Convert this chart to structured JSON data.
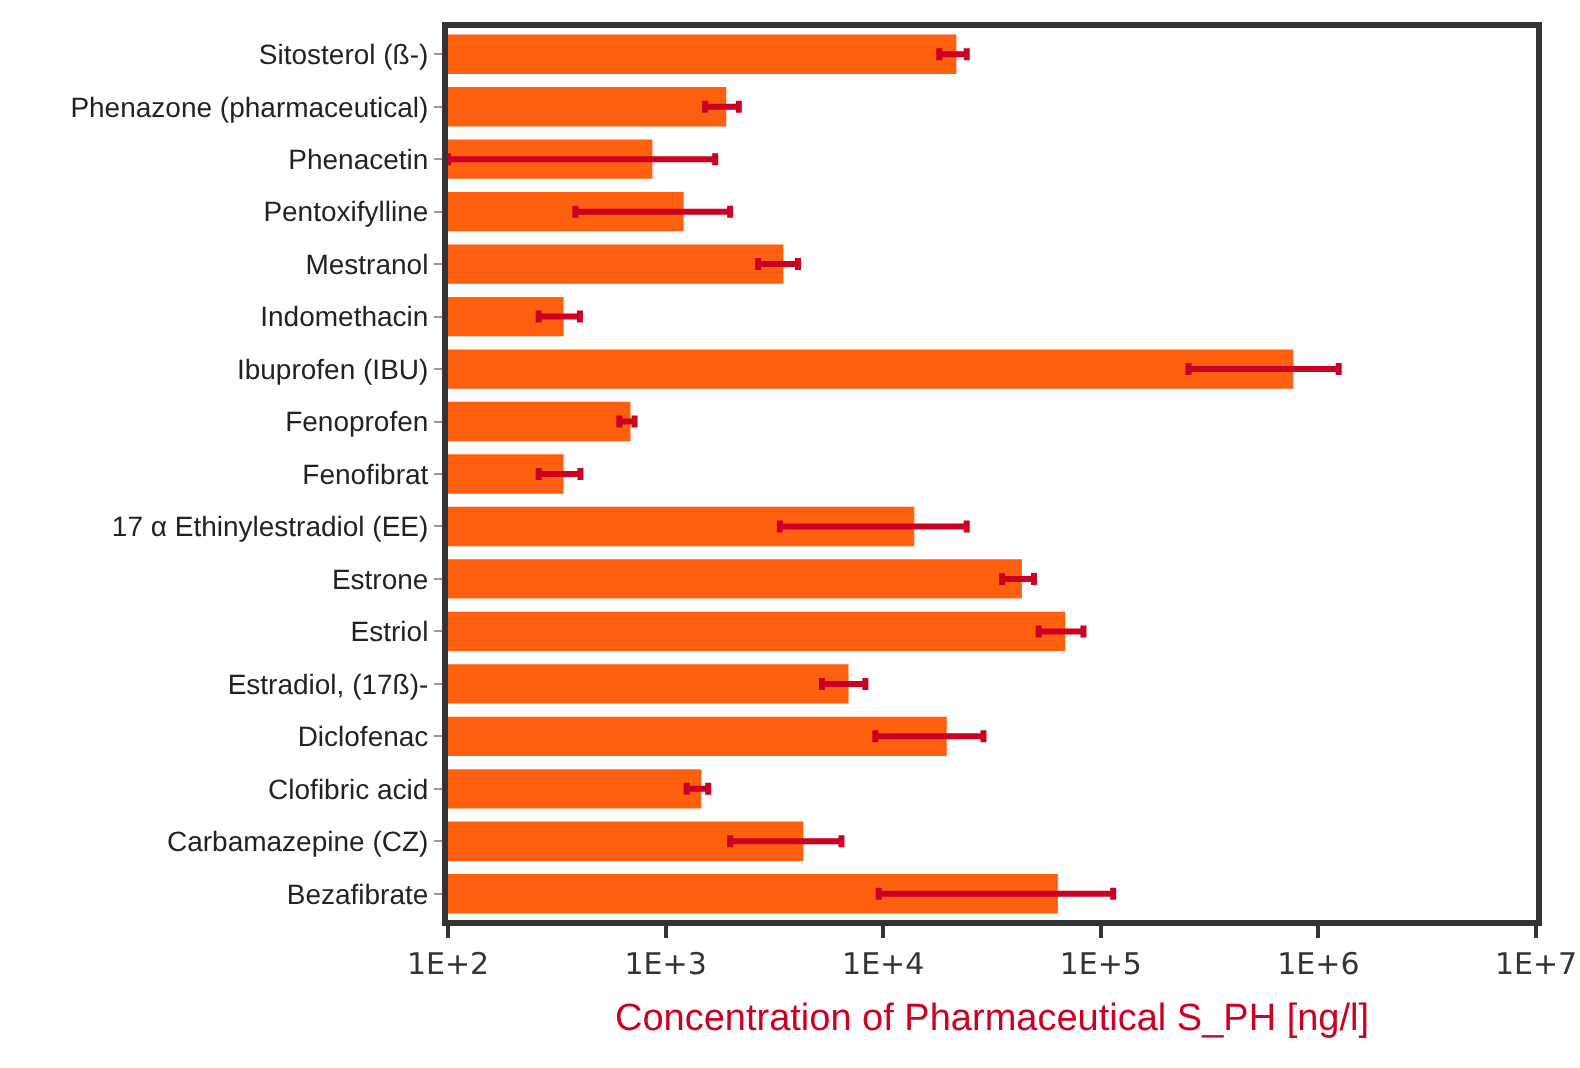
{
  "chart_data": {
    "type": "bar",
    "orientation": "horizontal",
    "log": "x",
    "xlabel": "Concentration of Pharmaceutical S_PH [ng/l]",
    "categories": [
      "Sitosterol (ß-)",
      "Phenazone (pharmaceutical)",
      "Phenacetin",
      "Pentoxifylline",
      "Mestranol",
      "Indomethacin",
      "Ibuprofen (IBU)",
      "Fenoprofen",
      "Fenofibrat",
      "17 α Ethinylestradiol (EE)",
      "Estrone",
      "Estriol",
      "Estradiol, (17ß)-",
      "Diclofenac",
      "Clofibric acid",
      "Carbamazepine (CZ)",
      "Bezafibrate"
    ],
    "series": [
      {
        "color": "#ff6010",
        "values": [
          21700,
          1900,
          870,
          1210,
          3480,
          340,
          767000,
          690,
          340,
          13900,
          43400,
          68700,
          6930,
          19600,
          1460,
          4300,
          63500
        ],
        "errors": [
          [
            18100,
            24200
          ],
          [
            1520,
            2170
          ],
          [
            100,
            1690
          ],
          [
            385,
            1980
          ],
          [
            2660,
            4060
          ],
          [
            261,
            404
          ],
          [
            253000,
            1240000
          ],
          [
            613,
            720
          ],
          [
            261,
            406
          ],
          [
            3350,
            24200
          ],
          [
            35200,
            49300
          ],
          [
            51800,
            83200
          ],
          [
            5230,
            8280
          ],
          [
            9200,
            28900
          ],
          [
            1250,
            1570
          ],
          [
            1980,
            6430
          ],
          [
            9530,
            114000
          ]
        ]
      }
    ],
    "xlim": [
      100,
      10000000
    ],
    "xticks": [
      {
        "value": 100,
        "label": "1E+2"
      },
      {
        "value": 1000,
        "label": "1E+3"
      },
      {
        "value": 10000,
        "label": "1E+4"
      },
      {
        "value": 100000,
        "label": "1E+5"
      },
      {
        "value": 1000000,
        "label": "1E+6"
      },
      {
        "value": 10000000,
        "label": "1E+7"
      }
    ],
    "grid": false
  }
}
